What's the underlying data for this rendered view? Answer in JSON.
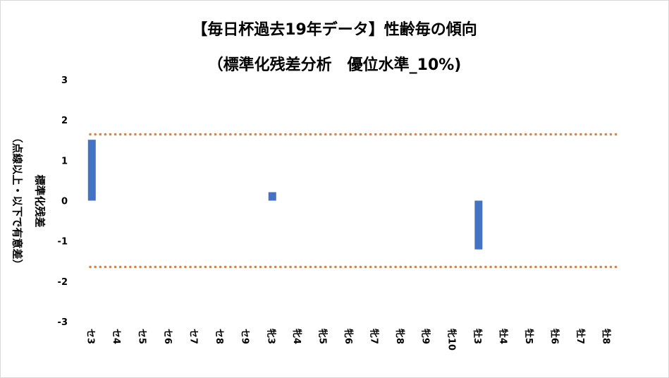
{
  "chart_data": {
    "type": "bar",
    "title_line1": "【毎日杯過去19年データ】性齢毎の傾向",
    "title_line2": "（標準化残差分析　優位水準_10%)",
    "ylabel_line1": "標準化残差",
    "ylabel_line2": "（点線以上・以下で有意差）",
    "xlabel": "",
    "ylim": [
      -3,
      3
    ],
    "yticks": [
      "3",
      "2",
      "1",
      "0",
      "-1",
      "-2",
      "-3"
    ],
    "categories": [
      "セ3",
      "セ4",
      "セ5",
      "セ6",
      "セ7",
      "セ8",
      "セ9",
      "牝3",
      "牝4",
      "牝5",
      "牝6",
      "牝7",
      "牝8",
      "牝9",
      "牝10",
      "牡3",
      "牡4",
      "牡5",
      "牡6",
      "牡7",
      "牡8"
    ],
    "values": [
      1.51,
      0,
      0,
      0,
      0,
      0,
      0,
      0.21,
      0,
      0,
      0,
      0,
      0,
      0,
      0,
      -1.21,
      0,
      0,
      0,
      0,
      0
    ],
    "threshold": 1.645,
    "grid": false,
    "colors": {
      "bar": "#4472c4",
      "threshold": "#ed7d31"
    }
  }
}
